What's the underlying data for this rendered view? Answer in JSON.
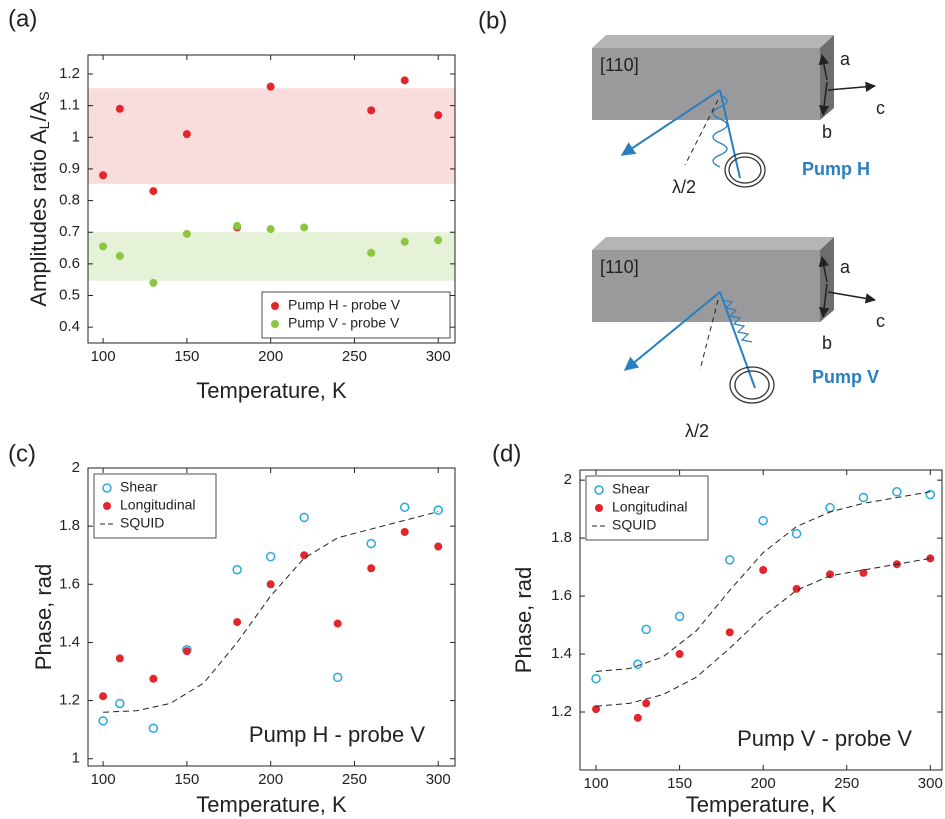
{
  "chart_data": [
    {
      "type": "scatter",
      "panel": "(a)",
      "xlabel": "Temperature, K",
      "ylabel": [
        "Amplitudes ratio A",
        "L",
        "/A",
        "S"
      ],
      "xlim": [
        91,
        310
      ],
      "xticks": [
        100,
        150,
        200,
        250,
        300
      ],
      "ylim": [
        0.35,
        1.26
      ],
      "yticks": [
        0.4,
        0.5,
        0.6,
        0.7,
        0.8,
        0.9,
        1,
        1.1,
        1.2
      ],
      "bands": [
        {
          "range": [
            0.853,
            1.155
          ],
          "color": "#f9dcdc"
        },
        {
          "range": [
            0.547,
            0.7
          ],
          "color": "#e6f2d8"
        }
      ],
      "legend": "lower right",
      "series": [
        {
          "name": "Pump H - probe V",
          "color": "#e3262b",
          "marker": "filled",
          "x": [
            100,
            110,
            130,
            150,
            180,
            200,
            260,
            280,
            300
          ],
          "values": [
            0.88,
            1.09,
            0.83,
            1.01,
            0.715,
            1.16,
            1.085,
            1.18,
            1.07
          ]
        },
        {
          "name": "Pump V - probe V",
          "color": "#8cc63f",
          "marker": "filled",
          "x": [
            100,
            110,
            130,
            150,
            180,
            200,
            220,
            260,
            280,
            300
          ],
          "values": [
            0.655,
            0.625,
            0.54,
            0.695,
            0.72,
            0.71,
            0.715,
            0.635,
            0.67,
            0.675
          ]
        }
      ]
    },
    {
      "type": "scatter",
      "panel": "(c)",
      "xlabel": "Temperature, K",
      "ylabel": "Phase, rad",
      "annotation": "Pump H - probe V",
      "xlim": [
        91,
        310
      ],
      "xticks": [
        100,
        150,
        200,
        250,
        300
      ],
      "ylim": [
        0.975,
        2.0
      ],
      "yticks": [
        1,
        1.2,
        1.4,
        1.6,
        1.8,
        2
      ],
      "legend": "upper left",
      "series": [
        {
          "name": "Shear",
          "color": "#29a9df",
          "marker": "open",
          "x": [
            100,
            110,
            130,
            150,
            180,
            200,
            220,
            240,
            260,
            280,
            300
          ],
          "values": [
            1.13,
            1.19,
            1.105,
            1.375,
            1.65,
            1.695,
            1.83,
            1.28,
            1.74,
            1.865,
            1.855
          ]
        },
        {
          "name": "Longitudinal",
          "color": "#e3262b",
          "marker": "filled",
          "x": [
            100,
            110,
            130,
            150,
            180,
            200,
            220,
            240,
            260,
            280,
            300
          ],
          "values": [
            1.215,
            1.345,
            1.275,
            1.37,
            1.47,
            1.6,
            1.7,
            1.465,
            1.655,
            1.78,
            1.73
          ]
        },
        {
          "name": "SQUID",
          "type": "line",
          "color": "#222222",
          "x": [
            100,
            120,
            140,
            160,
            180,
            200,
            220,
            240,
            260,
            280,
            300
          ],
          "values": [
            1.16,
            1.165,
            1.19,
            1.26,
            1.4,
            1.56,
            1.69,
            1.76,
            1.79,
            1.82,
            1.85
          ]
        }
      ]
    },
    {
      "type": "scatter",
      "panel": "(d)",
      "xlabel": "Temperature, K",
      "ylabel": "Phase, rad",
      "annotation": "Pump V - probe V",
      "xlim": [
        90.4,
        307
      ],
      "xticks": [
        100,
        150,
        200,
        250,
        300
      ],
      "ylim": [
        1.0,
        2.035
      ],
      "yticks": [
        1.2,
        1.4,
        1.6,
        1.8,
        2
      ],
      "legend": "upper left",
      "series": [
        {
          "name": "Shear",
          "color": "#29a9df",
          "marker": "open",
          "x": [
            100,
            125,
            130,
            150,
            180,
            200,
            220,
            240,
            260,
            280,
            300
          ],
          "values": [
            1.315,
            1.365,
            1.485,
            1.53,
            1.725,
            1.86,
            1.815,
            1.905,
            1.94,
            1.96,
            1.95
          ]
        },
        {
          "name": "Longitudinal",
          "color": "#e3262b",
          "marker": "filled",
          "x": [
            100,
            125,
            130,
            150,
            180,
            200,
            220,
            240,
            260,
            280,
            300
          ],
          "values": [
            1.21,
            1.18,
            1.23,
            1.4,
            1.475,
            1.69,
            1.625,
            1.675,
            1.68,
            1.71,
            1.73
          ]
        },
        {
          "name": "SQUID",
          "type": "line",
          "color": "#222222",
          "x": [
            100,
            120,
            140,
            160,
            180,
            200,
            220,
            240,
            260,
            280,
            300
          ],
          "values": [
            1.34,
            1.35,
            1.39,
            1.48,
            1.62,
            1.75,
            1.84,
            1.89,
            1.92,
            1.94,
            1.96
          ]
        },
        {
          "type": "line",
          "color": "#222222",
          "x": [
            100,
            120,
            140,
            160,
            180,
            200,
            220,
            240,
            260,
            280,
            300
          ],
          "values": [
            1.22,
            1.23,
            1.26,
            1.32,
            1.42,
            1.53,
            1.62,
            1.67,
            1.69,
            1.71,
            1.73
          ]
        }
      ]
    }
  ],
  "diagram": {
    "panel": "(b)",
    "setups": [
      {
        "face": "[110]",
        "a": "a",
        "b": "b",
        "c": "c",
        "pump": "Pump H",
        "plate": "λ/2"
      },
      {
        "face": "[110]",
        "a": "a",
        "b": "b",
        "c": "c",
        "pump": "Pump V",
        "plate": "λ/2"
      }
    ]
  }
}
